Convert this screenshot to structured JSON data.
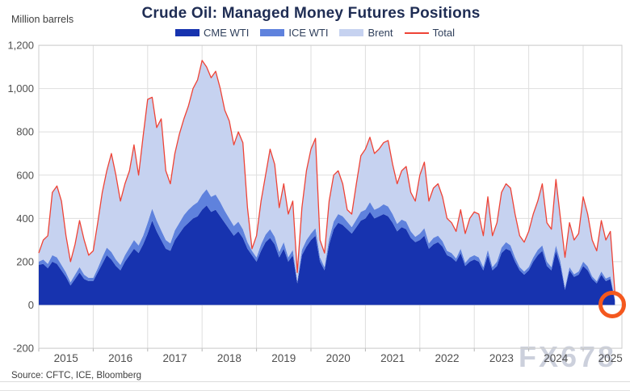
{
  "header": {
    "title": "Crude Oil: Managed Money Futures Positions",
    "unit_label": "Million barrels"
  },
  "legend": [
    {
      "label": "CME WTI",
      "color": "#1733af",
      "swatch": "area"
    },
    {
      "label": "ICE WTI",
      "color": "#5f82dd",
      "swatch": "area"
    },
    {
      "label": "Brent",
      "color": "#c6d2f0",
      "swatch": "area"
    },
    {
      "label": "Total",
      "color": "#ee4336",
      "swatch": "line"
    }
  ],
  "source": "Source: CFTC, ICE, Bloomberg",
  "watermark": "FX678",
  "annotation": {
    "type": "circle-highlight",
    "color": "#f4581e",
    "note": "highlights final data point near zero"
  },
  "chart_data": {
    "type": "area",
    "stacked": true,
    "title": "Crude Oil: Managed Money Futures Positions",
    "ylabel": "Million barrels",
    "xlabel": "",
    "ylim": [
      -200,
      1200
    ],
    "grid": "on",
    "legend_position": "top",
    "x_start": 2015.0,
    "x_step_years": 0.083333,
    "x_tick_labels": [
      "2015",
      "2016",
      "2017",
      "2018",
      "2019",
      "2020",
      "2021",
      "2022",
      "2023",
      "2024",
      "2025"
    ],
    "y_tick_values": [
      -200,
      0,
      200,
      400,
      600,
      800,
      1000,
      1200
    ],
    "y_tick_labels": [
      "-200",
      "0",
      "200",
      "400",
      "600",
      "800",
      "1,000",
      "1,200"
    ],
    "series": [
      {
        "name": "CME WTI",
        "color": "#1733af",
        "render": "area",
        "values": [
          185,
          190,
          170,
          200,
          190,
          160,
          130,
          90,
          120,
          150,
          120,
          110,
          110,
          150,
          190,
          230,
          210,
          180,
          160,
          200,
          230,
          260,
          240,
          280,
          330,
          390,
          340,
          300,
          260,
          250,
          300,
          330,
          360,
          380,
          400,
          410,
          440,
          460,
          430,
          440,
          410,
          380,
          350,
          320,
          340,
          310,
          260,
          230,
          200,
          250,
          290,
          310,
          280,
          220,
          260,
          200,
          230,
          100,
          230,
          270,
          300,
          320,
          200,
          160,
          280,
          350,
          380,
          370,
          350,
          330,
          360,
          390,
          400,
          430,
          400,
          410,
          420,
          410,
          380,
          340,
          360,
          350,
          310,
          290,
          300,
          320,
          260,
          280,
          290,
          270,
          230,
          220,
          200,
          240,
          180,
          200,
          210,
          200,
          160,
          230,
          160,
          180,
          240,
          260,
          250,
          200,
          160,
          140,
          160,
          200,
          230,
          250,
          180,
          160,
          250,
          180,
          70,
          160,
          130,
          140,
          180,
          160,
          120,
          100,
          140,
          110,
          120,
          20
        ]
      },
      {
        "name": "ICE WTI",
        "color": "#5f82dd",
        "render": "area",
        "values": [
          15,
          20,
          20,
          30,
          30,
          25,
          20,
          15,
          20,
          25,
          20,
          15,
          15,
          20,
          30,
          35,
          35,
          30,
          25,
          30,
          35,
          40,
          35,
          40,
          50,
          55,
          50,
          45,
          40,
          35,
          45,
          50,
          55,
          60,
          60,
          65,
          70,
          75,
          70,
          70,
          65,
          55,
          50,
          45,
          45,
          40,
          30,
          20,
          20,
          30,
          35,
          40,
          35,
          25,
          30,
          20,
          25,
          10,
          25,
          30,
          30,
          35,
          20,
          15,
          25,
          35,
          40,
          40,
          35,
          30,
          35,
          40,
          40,
          45,
          40,
          40,
          45,
          45,
          40,
          35,
          35,
          35,
          30,
          25,
          30,
          35,
          25,
          30,
          30,
          25,
          20,
          20,
          15,
          20,
          15,
          20,
          20,
          20,
          15,
          25,
          15,
          20,
          25,
          30,
          25,
          20,
          15,
          15,
          15,
          20,
          25,
          25,
          20,
          15,
          25,
          20,
          10,
          15,
          12,
          15,
          20,
          18,
          12,
          10,
          15,
          12,
          12,
          5
        ]
      },
      {
        "name": "Brent",
        "color": "#c6d2f0",
        "render": "area",
        "values": [
          40,
          90,
          130,
          290,
          330,
          295,
          170,
          95,
          140,
          215,
          160,
          105,
          125,
          210,
          300,
          355,
          455,
          390,
          295,
          330,
          355,
          440,
          325,
          460,
          570,
          515,
          430,
          515,
          320,
          275,
          355,
          410,
          445,
          480,
          540,
          565,
          620,
          565,
          550,
          570,
          525,
          465,
          450,
          375,
          415,
          400,
          160,
          10,
          100,
          200,
          275,
          370,
          335,
          205,
          270,
          200,
          225,
          40,
          195,
          320,
          390,
          415,
          80,
          65,
          175,
          215,
          200,
          150,
          55,
          60,
          165,
          260,
          280,
          300,
          260,
          270,
          285,
          305,
          230,
          185,
          225,
          255,
          180,
          165,
          270,
          305,
          195,
          230,
          240,
          205,
          150,
          140,
          125,
          180,
          135,
          180,
          200,
          200,
          145,
          245,
          145,
          180,
          255,
          270,
          265,
          200,
          145,
          135,
          165,
          200,
          225,
          285,
          180,
          175,
          305,
          200,
          140,
          205,
          158,
          175,
          300,
          242,
          168,
          140,
          235,
          178,
          208,
          35
        ]
      },
      {
        "name": "Total",
        "color": "#ee4336",
        "render": "line",
        "values": [
          240,
          300,
          320,
          520,
          550,
          480,
          320,
          200,
          280,
          390,
          300,
          230,
          250,
          380,
          520,
          620,
          700,
          600,
          480,
          560,
          620,
          740,
          600,
          780,
          950,
          960,
          820,
          860,
          620,
          560,
          700,
          790,
          860,
          920,
          1000,
          1040,
          1130,
          1100,
          1050,
          1080,
          1000,
          900,
          850,
          740,
          800,
          750,
          450,
          260,
          320,
          480,
          600,
          720,
          650,
          450,
          560,
          420,
          480,
          150,
          450,
          620,
          720,
          770,
          300,
          240,
          480,
          600,
          620,
          560,
          440,
          420,
          560,
          690,
          720,
          775,
          700,
          720,
          750,
          760,
          650,
          560,
          620,
          640,
          520,
          480,
          600,
          660,
          480,
          540,
          560,
          500,
          400,
          380,
          340,
          440,
          330,
          400,
          430,
          420,
          320,
          500,
          320,
          380,
          520,
          560,
          540,
          420,
          320,
          290,
          340,
          420,
          480,
          560,
          380,
          350,
          580,
          400,
          220,
          380,
          300,
          330,
          500,
          420,
          300,
          250,
          390,
          300,
          340,
          60
        ]
      }
    ]
  }
}
